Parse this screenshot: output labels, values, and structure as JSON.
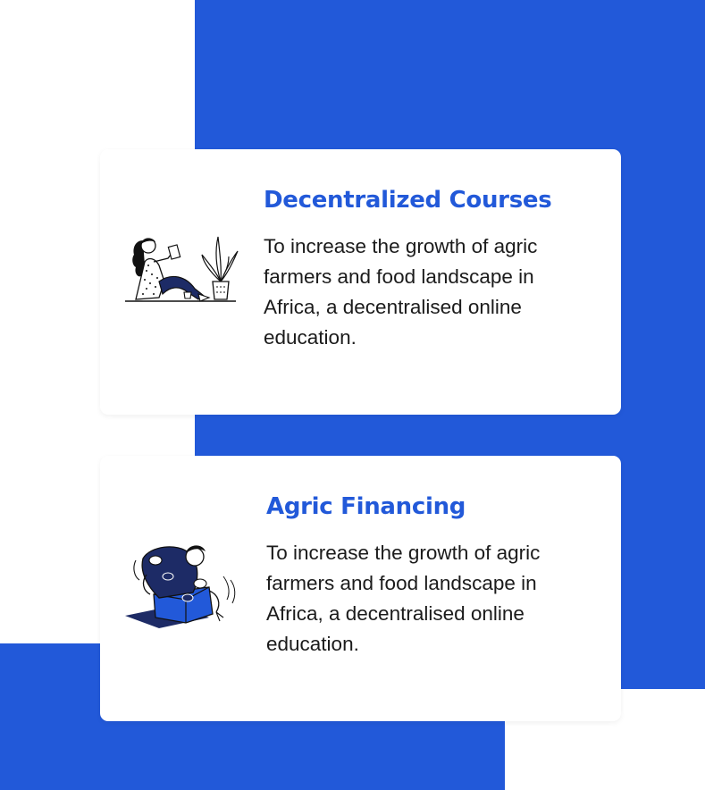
{
  "colors": {
    "accent": "#2259d9",
    "card_background": "#ffffff",
    "text": "#1b1b1b"
  },
  "features": [
    {
      "title": "Decentralized Courses",
      "description": "To increase the growth of agric farmers and food landscape in Africa, a decentralised online education.",
      "illustration": "woman-reading-book-with-plant-illustration"
    },
    {
      "title": "Agric Financing",
      "description": "To increase the growth of agric farmers and food landscape in Africa, a decentralised online education.",
      "illustration": "person-sitting-in-box-with-coins-illustration"
    }
  ]
}
